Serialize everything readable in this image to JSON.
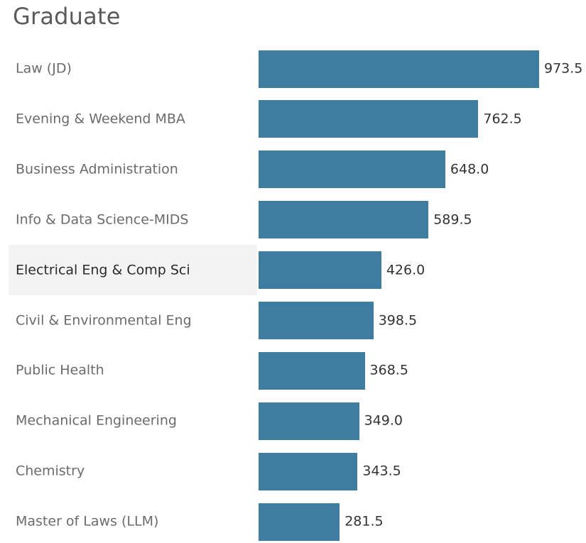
{
  "chart_data": {
    "type": "bar",
    "orientation": "horizontal",
    "title": "Graduate",
    "categories": [
      "Law (JD)",
      "Evening & Weekend MBA",
      "Business Administration",
      "Info & Data Science-MIDS",
      "Electrical Eng & Comp Sci",
      "Civil & Environmental Eng",
      "Public Health",
      "Mechanical Engineering",
      "Chemistry",
      "Master of Laws (LLM)"
    ],
    "values": [
      973.5,
      762.5,
      648.0,
      589.5,
      426.0,
      398.5,
      368.5,
      349.0,
      343.5,
      281.5
    ],
    "value_labels": [
      "973.5",
      "762.5",
      "648.0",
      "589.5",
      "426.0",
      "398.5",
      "368.5",
      "349.0",
      "343.5",
      "281.5"
    ],
    "highlighted_category": "Electrical Eng & Comp Sci",
    "xlabel": "",
    "ylabel": "",
    "xlim": [
      0,
      1000
    ],
    "grid": false,
    "legend": "none",
    "bar_color": "#3e7ca0"
  }
}
